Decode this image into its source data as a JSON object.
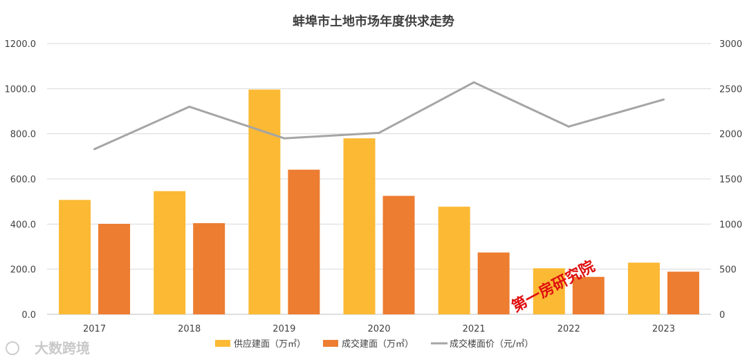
{
  "chart_data": {
    "type": "bar",
    "title": "蚌埠市土地市场年度供求走势",
    "categories": [
      "2017",
      "2018",
      "2019",
      "2020",
      "2021",
      "2022",
      "2023"
    ],
    "series": [
      {
        "name": "供应建面（万㎡）",
        "kind": "bar",
        "axis": "left",
        "color": "#FBB934",
        "values": [
          507,
          546,
          996,
          780,
          477,
          204,
          229
        ]
      },
      {
        "name": "成交建面（万㎡）",
        "kind": "bar",
        "axis": "left",
        "color": "#ED7D31",
        "values": [
          401,
          404,
          641,
          525,
          274,
          166,
          189
        ]
      },
      {
        "name": "成交楼面价（元/㎡）",
        "kind": "line",
        "axis": "right",
        "color": "#A5A5A5",
        "values": [
          1830,
          2300,
          1950,
          2010,
          2570,
          2080,
          2380
        ]
      }
    ],
    "ylim_left": [
      0,
      1200
    ],
    "yticks_left": [
      "0.0",
      "200.0",
      "400.0",
      "600.0",
      "800.0",
      "1000.0",
      "1200.0"
    ],
    "ylim_right": [
      0,
      3000
    ],
    "yticks_right": [
      "0",
      "500",
      "1000",
      "1500",
      "2000",
      "2500",
      "3000"
    ],
    "grid": true,
    "legend_position": "bottom"
  },
  "watermarks": {
    "red_stamp": "第一房研究院",
    "logo_text": "大数跨境"
  }
}
